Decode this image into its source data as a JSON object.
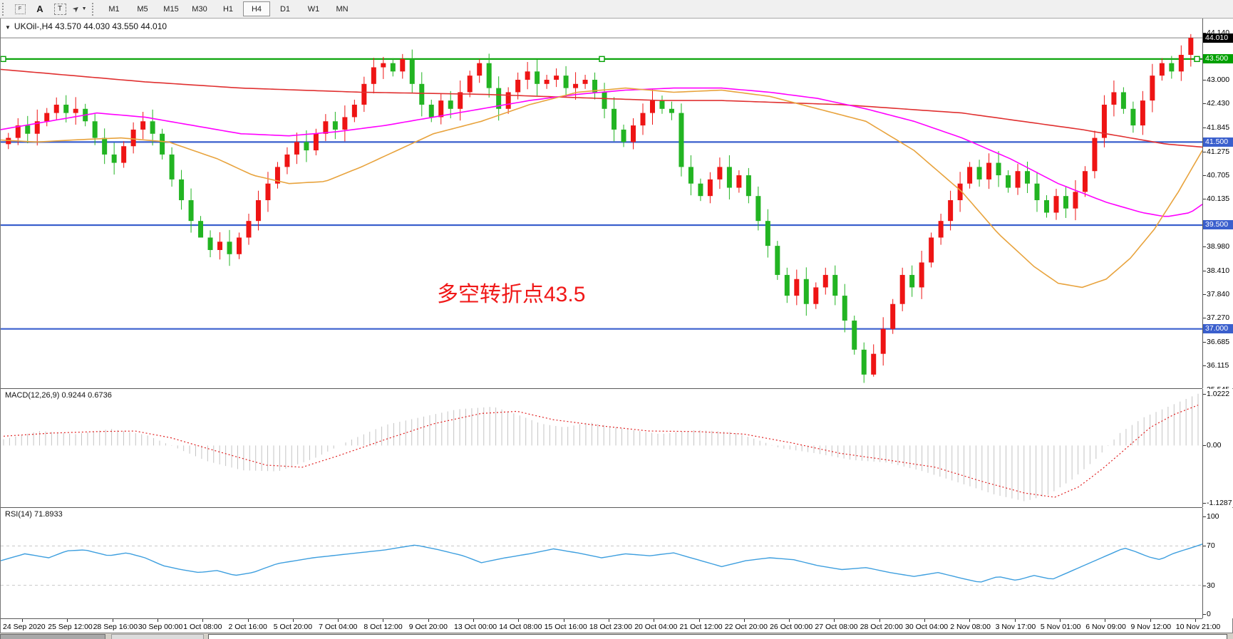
{
  "toolbar": {
    "tools": [
      {
        "name": "chart-profile-icon",
        "glyph": "F"
      },
      {
        "name": "font-label-icon",
        "glyph": "A"
      },
      {
        "name": "text-tool-icon",
        "glyph": "T"
      },
      {
        "name": "arrows-tool-icon",
        "glyph": "➤"
      }
    ],
    "dropdown_caret": "▼",
    "timeframes": [
      {
        "label": "M1",
        "active": false
      },
      {
        "label": "M5",
        "active": false
      },
      {
        "label": "M15",
        "active": false
      },
      {
        "label": "M30",
        "active": false
      },
      {
        "label": "H1",
        "active": false
      },
      {
        "label": "H4",
        "active": true
      },
      {
        "label": "D1",
        "active": false
      },
      {
        "label": "W1",
        "active": false
      },
      {
        "label": "MN",
        "active": false
      }
    ]
  },
  "chart_header": {
    "collapse_glyph": "▼",
    "title": "UKOil-,H4  43.570 44.030 43.550 44.010"
  },
  "indicators": {
    "macd_label": "MACD(12,26,9) 0.9244 0.6736",
    "rsi_label": "RSI(14) 71.8933"
  },
  "annotation": {
    "text": "多空转折点43.5",
    "color": "#f01818"
  },
  "chart_data": {
    "type": "candlestick",
    "symbol": "UKOil-",
    "timeframe": "H4",
    "ohlc_readout": {
      "open": "43.570",
      "high": "44.030",
      "low": "43.550",
      "close": "44.010"
    },
    "up_color": "#ee1414",
    "down_color": "#22b422",
    "price_domain": [
      35.571,
      44.475
    ],
    "price_axis_ticks": [
      "44.140",
      "43.000",
      "42.430",
      "41.845",
      "41.275",
      "40.705",
      "40.135",
      "38.980",
      "38.410",
      "37.840",
      "37.270",
      "36.685",
      "36.115",
      "35.545"
    ],
    "current_price": {
      "value": 44.01,
      "label": "44.010",
      "line_color": "#808080",
      "badge_color": "#000000"
    },
    "levels": [
      {
        "price": 43.5,
        "label": "43.500",
        "color": "#00a000",
        "handles": true
      },
      {
        "price": 41.5,
        "label": "41.500",
        "color": "#3a5fcd",
        "handles": false
      },
      {
        "price": 39.5,
        "label": "39.500",
        "color": "#3a5fcd",
        "handles": false
      },
      {
        "price": 37.0,
        "label": "37.000",
        "color": "#3a5fcd",
        "handles": false
      }
    ],
    "closes": [
      41.6,
      41.9,
      41.7,
      42.0,
      42.2,
      42.4,
      42.2,
      42.3,
      42.0,
      41.6,
      41.2,
      41.0,
      41.4,
      41.8,
      42.0,
      41.7,
      41.2,
      40.6,
      40.1,
      39.6,
      39.2,
      38.9,
      39.1,
      38.8,
      39.2,
      39.6,
      40.1,
      40.5,
      40.9,
      41.2,
      41.5,
      41.3,
      41.7,
      42.0,
      41.8,
      42.1,
      42.4,
      42.9,
      43.3,
      43.4,
      43.2,
      43.5,
      42.9,
      42.4,
      42.1,
      42.5,
      42.3,
      42.7,
      43.1,
      43.4,
      42.8,
      42.3,
      42.7,
      43.0,
      43.2,
      42.9,
      43.0,
      43.1,
      42.8,
      42.9,
      43.0,
      42.7,
      42.3,
      41.8,
      41.5,
      41.9,
      42.2,
      42.5,
      42.3,
      42.2,
      40.9,
      40.5,
      40.2,
      40.6,
      40.9,
      40.4,
      40.7,
      40.2,
      39.6,
      39.0,
      38.3,
      37.8,
      38.2,
      37.6,
      38.0,
      38.3,
      37.8,
      37.2,
      36.5,
      35.9,
      36.4,
      37.0,
      37.6,
      38.3,
      38.0,
      38.6,
      39.2,
      39.6,
      40.1,
      40.5,
      40.9,
      40.6,
      41.0,
      40.7,
      40.4,
      40.8,
      40.5,
      40.1,
      39.8,
      40.2,
      39.9,
      40.3,
      40.8,
      41.6,
      42.4,
      42.7,
      42.3,
      41.9,
      42.5,
      43.1,
      43.4,
      43.2,
      43.6,
      44.0
    ],
    "wick": 0.12,
    "overrides": {
      "high": {
        "39": 43.55,
        "41": 43.62,
        "49": 43.5,
        "123": 44.1
      },
      "low": {
        "20": 39.3,
        "89": 35.7,
        "90": 35.85
      },
      "close": {
        "123": 44.01
      }
    },
    "ma_lines": [
      {
        "name": "ma-red-slow",
        "color": "#e03030",
        "width": 1.6,
        "points": [
          [
            0,
            43.25
          ],
          [
            0.06,
            43.1
          ],
          [
            0.12,
            42.95
          ],
          [
            0.2,
            42.8
          ],
          [
            0.3,
            42.7
          ],
          [
            0.4,
            42.65
          ],
          [
            0.45,
            42.6
          ],
          [
            0.5,
            42.55
          ],
          [
            0.55,
            42.5
          ],
          [
            0.6,
            42.5
          ],
          [
            0.65,
            42.45
          ],
          [
            0.7,
            42.4
          ],
          [
            0.75,
            42.3
          ],
          [
            0.8,
            42.2
          ],
          [
            0.85,
            42.0
          ],
          [
            0.9,
            41.8
          ],
          [
            0.94,
            41.6
          ],
          [
            0.97,
            41.45
          ],
          [
            1,
            41.38
          ]
        ]
      },
      {
        "name": "ma-magenta-medium",
        "color": "#ff00ff",
        "width": 1.6,
        "points": [
          [
            0,
            41.8
          ],
          [
            0.04,
            42.0
          ],
          [
            0.08,
            42.2
          ],
          [
            0.12,
            42.1
          ],
          [
            0.16,
            41.9
          ],
          [
            0.2,
            41.7
          ],
          [
            0.24,
            41.65
          ],
          [
            0.28,
            41.75
          ],
          [
            0.32,
            41.9
          ],
          [
            0.36,
            42.1
          ],
          [
            0.4,
            42.3
          ],
          [
            0.44,
            42.5
          ],
          [
            0.48,
            42.65
          ],
          [
            0.52,
            42.75
          ],
          [
            0.56,
            42.8
          ],
          [
            0.6,
            42.8
          ],
          [
            0.64,
            42.7
          ],
          [
            0.68,
            42.55
          ],
          [
            0.72,
            42.3
          ],
          [
            0.76,
            42.0
          ],
          [
            0.8,
            41.6
          ],
          [
            0.84,
            41.1
          ],
          [
            0.88,
            40.5
          ],
          [
            0.92,
            40.05
          ],
          [
            0.95,
            39.8
          ],
          [
            0.97,
            39.7
          ],
          [
            0.99,
            39.8
          ],
          [
            1,
            40.0
          ]
        ]
      },
      {
        "name": "ma-orange-fast",
        "color": "#e8a33d",
        "width": 1.6,
        "points": [
          [
            0,
            41.55
          ],
          [
            0.03,
            41.5
          ],
          [
            0.06,
            41.55
          ],
          [
            0.1,
            41.6
          ],
          [
            0.14,
            41.5
          ],
          [
            0.18,
            41.1
          ],
          [
            0.21,
            40.7
          ],
          [
            0.24,
            40.5
          ],
          [
            0.27,
            40.55
          ],
          [
            0.3,
            40.9
          ],
          [
            0.33,
            41.3
          ],
          [
            0.36,
            41.7
          ],
          [
            0.4,
            42.0
          ],
          [
            0.44,
            42.4
          ],
          [
            0.48,
            42.7
          ],
          [
            0.52,
            42.8
          ],
          [
            0.56,
            42.7
          ],
          [
            0.6,
            42.75
          ],
          [
            0.64,
            42.6
          ],
          [
            0.68,
            42.3
          ],
          [
            0.72,
            42.0
          ],
          [
            0.76,
            41.3
          ],
          [
            0.8,
            40.3
          ],
          [
            0.83,
            39.3
          ],
          [
            0.86,
            38.5
          ],
          [
            0.88,
            38.1
          ],
          [
            0.9,
            38.0
          ],
          [
            0.92,
            38.2
          ],
          [
            0.94,
            38.7
          ],
          [
            0.96,
            39.4
          ],
          [
            0.98,
            40.3
          ],
          [
            1,
            41.3
          ]
        ]
      }
    ],
    "macd": {
      "domain": [
        -1.193,
        1.093
      ],
      "hist_color": "#c4c4c4",
      "signal_color": "#e02020",
      "axis": [
        {
          "v": 1.0222,
          "label": "1.0222"
        },
        {
          "v": 0,
          "label": "0.00"
        },
        {
          "v": -1.1287,
          "label": "-1.1287"
        }
      ],
      "hist": [
        [
          0,
          0.12
        ],
        [
          0.03,
          0.28
        ],
        [
          0.06,
          0.22
        ],
        [
          0.09,
          0.32
        ],
        [
          0.12,
          0.2
        ],
        [
          0.14,
          0.0
        ],
        [
          0.17,
          -0.3
        ],
        [
          0.2,
          -0.48
        ],
        [
          0.23,
          -0.5
        ],
        [
          0.26,
          -0.25
        ],
        [
          0.29,
          0.1
        ],
        [
          0.32,
          0.4
        ],
        [
          0.35,
          0.55
        ],
        [
          0.38,
          0.7
        ],
        [
          0.41,
          0.75
        ],
        [
          0.43,
          0.6
        ],
        [
          0.45,
          0.42
        ],
        [
          0.47,
          0.35
        ],
        [
          0.49,
          0.45
        ],
        [
          0.52,
          0.32
        ],
        [
          0.55,
          0.22
        ],
        [
          0.58,
          0.3
        ],
        [
          0.61,
          0.26
        ],
        [
          0.63,
          0.12
        ],
        [
          0.65,
          -0.05
        ],
        [
          0.68,
          -0.15
        ],
        [
          0.71,
          -0.28
        ],
        [
          0.74,
          -0.33
        ],
        [
          0.77,
          -0.5
        ],
        [
          0.8,
          -0.72
        ],
        [
          0.83,
          -0.95
        ],
        [
          0.855,
          -1.08
        ],
        [
          0.875,
          -0.95
        ],
        [
          0.895,
          -0.65
        ],
        [
          0.915,
          -0.25
        ],
        [
          0.935,
          0.25
        ],
        [
          0.955,
          0.55
        ],
        [
          0.975,
          0.75
        ],
        [
          0.99,
          0.9
        ],
        [
          1,
          1.0
        ]
      ],
      "signal": [
        [
          0,
          0.18
        ],
        [
          0.04,
          0.24
        ],
        [
          0.08,
          0.27
        ],
        [
          0.11,
          0.28
        ],
        [
          0.14,
          0.15
        ],
        [
          0.18,
          -0.12
        ],
        [
          0.22,
          -0.38
        ],
        [
          0.25,
          -0.42
        ],
        [
          0.28,
          -0.2
        ],
        [
          0.32,
          0.12
        ],
        [
          0.36,
          0.42
        ],
        [
          0.4,
          0.62
        ],
        [
          0.43,
          0.66
        ],
        [
          0.46,
          0.5
        ],
        [
          0.5,
          0.38
        ],
        [
          0.54,
          0.28
        ],
        [
          0.58,
          0.27
        ],
        [
          0.62,
          0.22
        ],
        [
          0.66,
          0.05
        ],
        [
          0.7,
          -0.15
        ],
        [
          0.74,
          -0.28
        ],
        [
          0.78,
          -0.42
        ],
        [
          0.82,
          -0.7
        ],
        [
          0.855,
          -0.92
        ],
        [
          0.88,
          -1.0
        ],
        [
          0.9,
          -0.8
        ],
        [
          0.92,
          -0.45
        ],
        [
          0.94,
          -0.05
        ],
        [
          0.96,
          0.35
        ],
        [
          0.98,
          0.6
        ],
        [
          1,
          0.78
        ]
      ]
    },
    "rsi": {
      "line_color": "#3e9fdf",
      "level_color": "#c8c8c8",
      "levels": [
        70,
        30
      ],
      "axis": [
        {
          "v": 100,
          "label": "100"
        },
        {
          "v": 70,
          "label": "70"
        },
        {
          "v": 30,
          "label": "30"
        },
        {
          "v": 0,
          "label": "0"
        }
      ],
      "points": [
        [
          0,
          55
        ],
        [
          0.02,
          62
        ],
        [
          0.04,
          58
        ],
        [
          0.055,
          65
        ],
        [
          0.07,
          66
        ],
        [
          0.09,
          60
        ],
        [
          0.105,
          63
        ],
        [
          0.12,
          58
        ],
        [
          0.135,
          50
        ],
        [
          0.15,
          46
        ],
        [
          0.165,
          43
        ],
        [
          0.18,
          45
        ],
        [
          0.195,
          40
        ],
        [
          0.21,
          43
        ],
        [
          0.23,
          52
        ],
        [
          0.26,
          58
        ],
        [
          0.29,
          62
        ],
        [
          0.32,
          66
        ],
        [
          0.345,
          71
        ],
        [
          0.365,
          66
        ],
        [
          0.385,
          60
        ],
        [
          0.4,
          53
        ],
        [
          0.42,
          58
        ],
        [
          0.44,
          62
        ],
        [
          0.46,
          67
        ],
        [
          0.48,
          63
        ],
        [
          0.5,
          58
        ],
        [
          0.52,
          62
        ],
        [
          0.54,
          60
        ],
        [
          0.56,
          63
        ],
        [
          0.58,
          56
        ],
        [
          0.6,
          49
        ],
        [
          0.62,
          55
        ],
        [
          0.64,
          58
        ],
        [
          0.66,
          56
        ],
        [
          0.68,
          50
        ],
        [
          0.7,
          46
        ],
        [
          0.72,
          48
        ],
        [
          0.74,
          43
        ],
        [
          0.76,
          39
        ],
        [
          0.78,
          43
        ],
        [
          0.8,
          37
        ],
        [
          0.815,
          33
        ],
        [
          0.83,
          39
        ],
        [
          0.845,
          35
        ],
        [
          0.86,
          40
        ],
        [
          0.875,
          36
        ],
        [
          0.89,
          44
        ],
        [
          0.905,
          52
        ],
        [
          0.92,
          60
        ],
        [
          0.935,
          68
        ],
        [
          0.945,
          64
        ],
        [
          0.955,
          59
        ],
        [
          0.965,
          56
        ],
        [
          0.975,
          62
        ],
        [
          0.985,
          66
        ],
        [
          0.993,
          69
        ],
        [
          1,
          71.9
        ]
      ]
    },
    "time_labels": [
      "24 Sep 2020",
      "25 Sep 12:00",
      "28 Sep 16:00",
      "30 Sep 00:00",
      "1 Oct 08:00",
      "2 Oct 16:00",
      "5 Oct 20:00",
      "7 Oct 04:00",
      "8 Oct 12:00",
      "9 Oct 20:00",
      "13 Oct 00:00",
      "14 Oct 08:00",
      "15 Oct 16:00",
      "18 Oct 23:00",
      "20 Oct 04:00",
      "21 Oct 12:00",
      "22 Oct 20:00",
      "26 Oct 00:00",
      "27 Oct 08:00",
      "28 Oct 20:00",
      "30 Oct 04:00",
      "2 Nov 08:00",
      "3 Nov 17:00",
      "5 Nov 01:00",
      "6 Nov 09:00",
      "9 Nov 12:00",
      "10 Nov 21:00"
    ]
  }
}
